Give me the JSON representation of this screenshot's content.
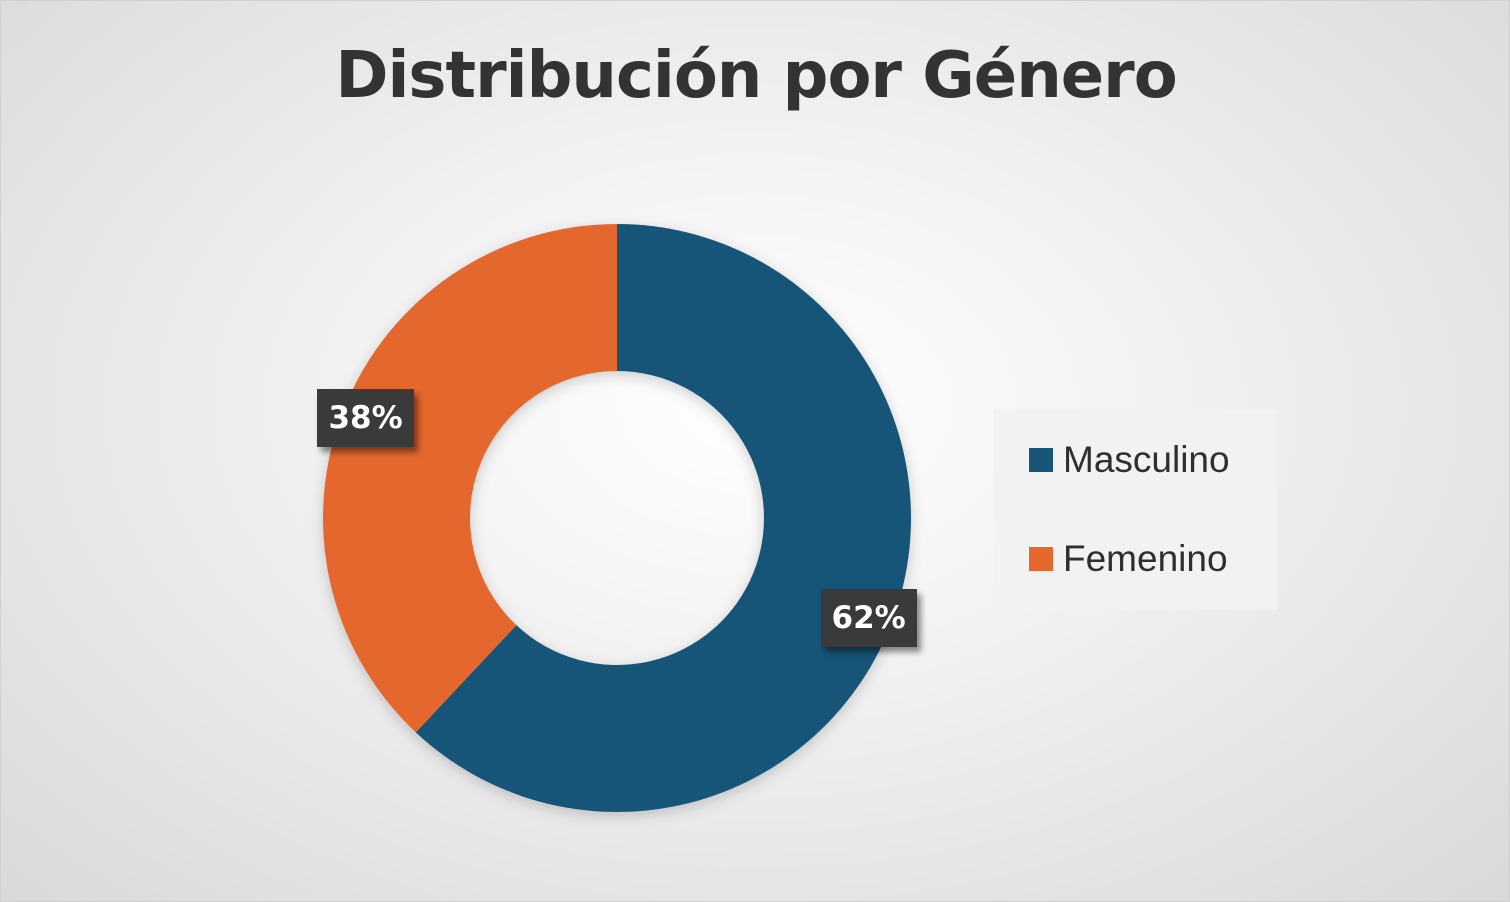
{
  "chart_data": {
    "type": "pie",
    "variant": "donut",
    "title": "Distribución por Género",
    "categories": [
      "Masculino",
      "Femenino"
    ],
    "values": [
      62,
      38
    ],
    "value_unit": "%",
    "data_labels": [
      "62%",
      "38%"
    ],
    "colors": [
      "#185578",
      "#E4672D"
    ],
    "legend_position": "right",
    "start_angle_deg": 0,
    "direction": "clockwise"
  }
}
